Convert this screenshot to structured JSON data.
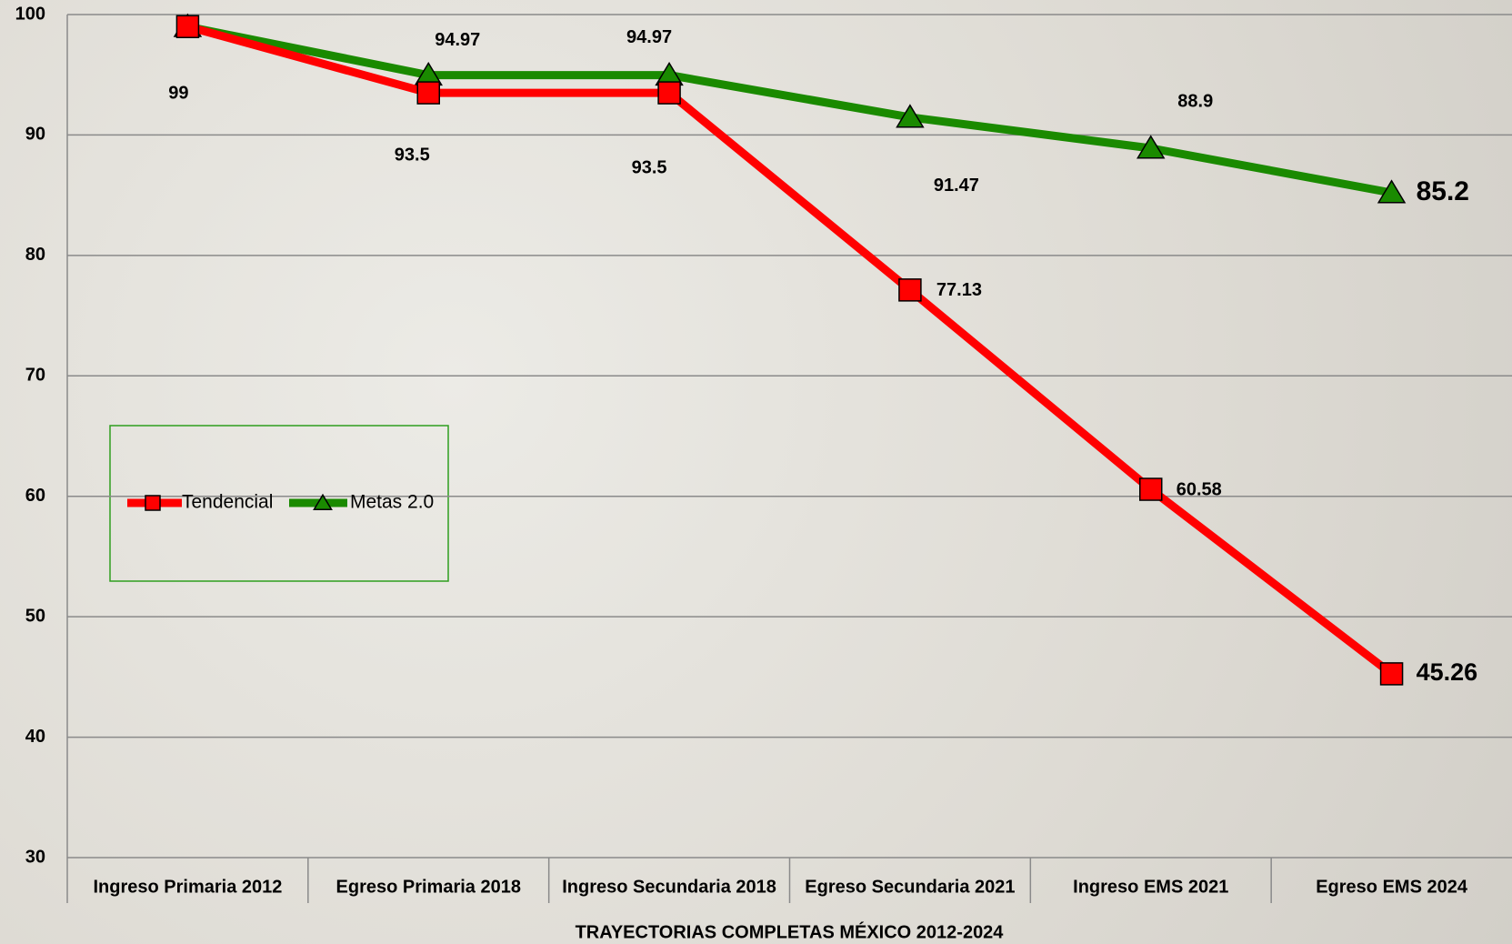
{
  "chart_data": {
    "type": "line",
    "x_label": "TRAYECTORIAS COMPLETAS MÉXICO 2012-2024",
    "categories": [
      "Ingreso Primaria 2012",
      "Egreso Primaria 2018",
      "Ingreso Secundaria 2018",
      "Egreso Secundaria 2021",
      "Ingreso EMS 2021",
      "Egreso EMS 2024"
    ],
    "series": [
      {
        "name": "Tendencial",
        "color": "#ff0000",
        "marker": "square",
        "values": [
          99,
          93.5,
          93.5,
          77.13,
          60.58,
          45.26
        ]
      },
      {
        "name": "Metas 2.0",
        "color": "#1a8a00",
        "marker": "triangle",
        "values": [
          99,
          94.97,
          94.97,
          91.47,
          88.9,
          85.2
        ]
      }
    ],
    "ylim": [
      30,
      100
    ],
    "yticks": [
      30,
      40,
      50,
      60,
      70,
      80,
      90,
      100
    ],
    "grid": true
  }
}
